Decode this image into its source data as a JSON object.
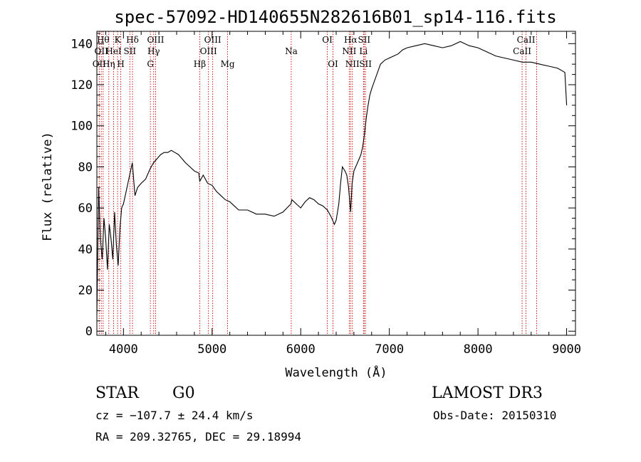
{
  "chart_data": {
    "type": "line",
    "title": "spec-57092-HD140655N282616B01_sp14-116.fits",
    "xlabel": "Wavelength (Å)",
    "ylabel": "Flux (relative)",
    "xlim": [
      3700,
      9100
    ],
    "ylim": [
      -2,
      146
    ],
    "x_ticks": [
      4000,
      5000,
      6000,
      7000,
      8000,
      9000
    ],
    "x_tick_labels": [
      "4000",
      "5000",
      "6000",
      "7000",
      "8000",
      "9000"
    ],
    "y_ticks": [
      0,
      20,
      40,
      60,
      80,
      100,
      120,
      140
    ],
    "y_tick_labels": [
      "0",
      "20",
      "40",
      "60",
      "80",
      "100",
      "120",
      "140"
    ],
    "grid": false,
    "series": [
      {
        "x": [
          3700,
          3720,
          3740,
          3760,
          3780,
          3800,
          3820,
          3840,
          3860,
          3880,
          3900,
          3920,
          3940,
          3960,
          3980,
          4000,
          4030,
          4060,
          4080,
          4100,
          4130,
          4160,
          4200,
          4250,
          4300,
          4340,
          4380,
          4420,
          4460,
          4500,
          4540,
          4580,
          4620,
          4660,
          4700,
          4750,
          4800,
          4850,
          4861,
          4900,
          4950,
          5000,
          5050,
          5100,
          5150,
          5200,
          5250,
          5300,
          5400,
          5500,
          5600,
          5700,
          5800,
          5890,
          5900,
          5950,
          6000,
          6050,
          6100,
          6150,
          6200,
          6250,
          6300,
          6340,
          6360,
          6380,
          6400,
          6430,
          6450,
          6470,
          6500,
          6520,
          6540,
          6563,
          6580,
          6600,
          6620,
          6640,
          6660,
          6680,
          6700,
          6720,
          6740,
          6760,
          6780,
          6800,
          6850,
          6900,
          6950,
          7000,
          7050,
          7100,
          7150,
          7200,
          7300,
          7400,
          7500,
          7600,
          7700,
          7800,
          7850,
          7900,
          8000,
          8100,
          8200,
          8300,
          8400,
          8500,
          8600,
          8700,
          8800,
          8900,
          8980,
          9000
        ],
        "values": [
          8,
          70,
          45,
          35,
          55,
          45,
          30,
          52,
          45,
          35,
          58,
          42,
          32,
          50,
          60,
          62,
          68,
          74,
          78,
          82,
          66,
          70,
          72,
          74,
          79,
          82,
          84,
          86,
          87,
          87,
          88,
          87,
          86,
          84,
          82,
          80,
          78,
          77,
          73,
          76,
          72,
          71,
          68,
          66,
          64,
          63,
          61,
          59,
          59,
          57,
          57,
          56,
          58,
          62,
          64,
          62,
          60,
          63,
          65,
          64,
          62,
          61,
          59,
          56,
          54,
          52,
          54,
          62,
          72,
          80,
          78,
          76,
          70,
          58,
          72,
          78,
          80,
          82,
          84,
          86,
          90,
          96,
          104,
          110,
          115,
          118,
          124,
          130,
          132,
          133,
          134,
          135,
          137,
          138,
          139,
          140,
          139,
          138,
          139,
          141,
          140,
          139,
          138,
          136,
          134,
          133,
          132,
          131,
          131,
          130,
          129,
          128,
          126,
          110
        ]
      }
    ],
    "lines": [
      {
        "wave": 3727,
        "label": "OII",
        "row": 3
      },
      {
        "wave": 3750,
        "label": "OII",
        "row": 2
      },
      {
        "wave": 3771,
        "label": "Hθ",
        "row": 1
      },
      {
        "wave": 3835,
        "label": "Hη",
        "row": 3
      },
      {
        "wave": 3889,
        "label": "HeI",
        "row": 2
      },
      {
        "wave": 3934,
        "label": "K",
        "row": 1
      },
      {
        "wave": 3970,
        "label": "H",
        "row": 3
      },
      {
        "wave": 4072,
        "label": "SII",
        "row": 2
      },
      {
        "wave": 4102,
        "label": "Hδ",
        "row": 1
      },
      {
        "wave": 4304,
        "label": "G",
        "row": 3
      },
      {
        "wave": 4341,
        "label": "Hγ",
        "row": 2
      },
      {
        "wave": 4363,
        "label": "OIII",
        "row": 1
      },
      {
        "wave": 4861,
        "label": "Hβ",
        "row": 3
      },
      {
        "wave": 4959,
        "label": "OIII",
        "row": 2
      },
      {
        "wave": 5007,
        "label": "OIII",
        "row": 1
      },
      {
        "wave": 5175,
        "label": "Mg",
        "row": 3
      },
      {
        "wave": 5893,
        "label": "Na",
        "row": 2
      },
      {
        "wave": 6300,
        "label": "OI",
        "row": 1
      },
      {
        "wave": 6364,
        "label": "OI",
        "row": 3
      },
      {
        "wave": 6548,
        "label": "NII",
        "row": 2
      },
      {
        "wave": 6563,
        "label": "Hα",
        "row": 1
      },
      {
        "wave": 6583,
        "label": "NII",
        "row": 3
      },
      {
        "wave": 6708,
        "label": "Li",
        "row": 2
      },
      {
        "wave": 6716,
        "label": "SII",
        "row": 1
      },
      {
        "wave": 6731,
        "label": "SII",
        "row": 3
      },
      {
        "wave": 8498,
        "label": "CaII",
        "row": 2
      },
      {
        "wave": 8542,
        "label": "CaII",
        "row": 1
      },
      {
        "wave": 8662,
        "label": "",
        "row": 0
      }
    ]
  },
  "info": {
    "class": "STAR",
    "subclass": "G0",
    "survey": "LAMOST DR3",
    "cz": "cz = −107.7 ± 24.4 km/s",
    "obs_date": "Obs-Date: 20150310",
    "coords": "RA = 209.32765, DEC =  29.18994"
  },
  "colors": {
    "spectrum": "#000000",
    "line_marker": "#cc0000",
    "axes": "#000000",
    "background": "#ffffff"
  }
}
